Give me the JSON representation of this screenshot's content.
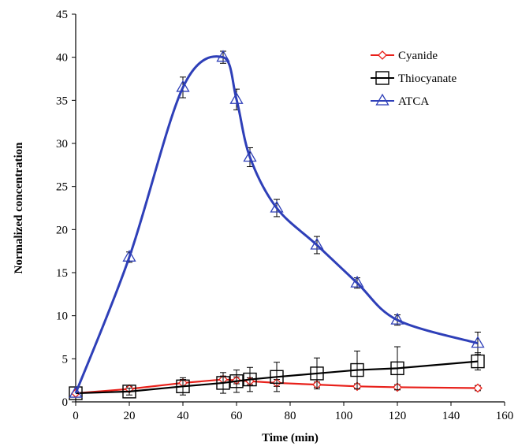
{
  "chart_data": {
    "type": "line",
    "xlabel": "Time (min)",
    "ylabel": "Normalized concentration",
    "xlim": [
      0,
      160
    ],
    "ylim": [
      0,
      45
    ],
    "xticks": [
      0,
      20,
      40,
      60,
      80,
      100,
      120,
      140,
      160
    ],
    "yticks": [
      0,
      5,
      10,
      15,
      20,
      25,
      30,
      35,
      40,
      45
    ],
    "grid": false,
    "legend_position": "top-right",
    "series": [
      {
        "name": "Cyanide",
        "color": "#e8201a",
        "marker": "diamond",
        "x": [
          0,
          20,
          40,
          55,
          60,
          65,
          75,
          90,
          105,
          120,
          150
        ],
        "y": [
          1.0,
          1.5,
          2.2,
          2.6,
          2.5,
          2.4,
          2.2,
          2.0,
          1.8,
          1.7,
          1.6
        ],
        "error": [
          0,
          0.3,
          0.4,
          0.4,
          0.4,
          0.4,
          0.4,
          0.3,
          0.3,
          0.3,
          0.3
        ]
      },
      {
        "name": "Thiocyanate",
        "color": "#000000",
        "marker": "square",
        "x": [
          0,
          20,
          40,
          55,
          60,
          65,
          75,
          90,
          105,
          120,
          150
        ],
        "y": [
          1.0,
          1.2,
          1.8,
          2.2,
          2.4,
          2.6,
          2.9,
          3.3,
          3.7,
          3.9,
          4.7
        ],
        "error": [
          0,
          0.4,
          1.0,
          1.2,
          1.3,
          1.4,
          1.7,
          1.8,
          2.2,
          2.5,
          1.0
        ]
      },
      {
        "name": "ATCA",
        "color": "#2e3fb8",
        "marker": "triangle",
        "x": [
          0,
          20,
          40,
          55,
          60,
          65,
          75,
          90,
          105,
          120,
          150
        ],
        "y": [
          1.0,
          16.8,
          36.5,
          40.0,
          35.1,
          28.4,
          22.5,
          18.2,
          13.8,
          9.5,
          6.8
        ],
        "error": [
          0,
          0.6,
          1.2,
          0.7,
          1.2,
          1.1,
          1.0,
          1.0,
          0.6,
          0.6,
          1.3
        ]
      }
    ]
  }
}
